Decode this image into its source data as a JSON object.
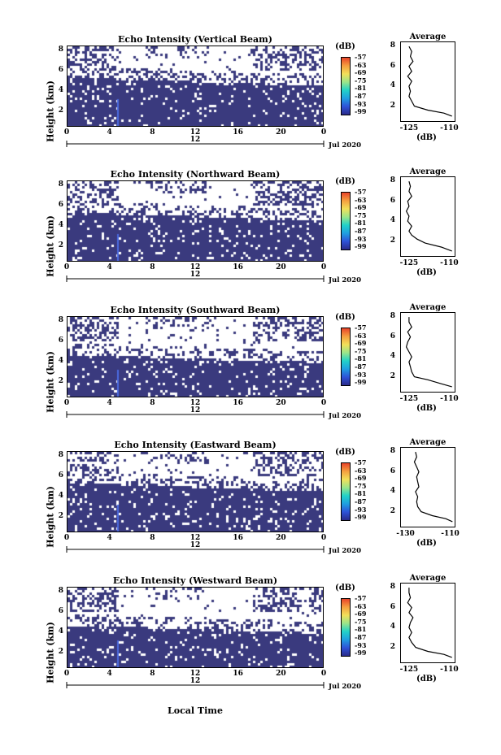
{
  "chart_data": [
    {
      "type": "heatmap",
      "title": "Echo Intensity (Vertical Beam)",
      "ylabel": "Height (km)",
      "x_ticks": [
        "0",
        "4",
        "8",
        "12",
        "16",
        "20",
        "0"
      ],
      "y_ticks": [
        "2",
        "4",
        "6",
        "8"
      ],
      "date_marker": "12",
      "date_label": "Jul 2020",
      "colorbar_label": "(dB)",
      "colorbar_ticks": [
        "-57",
        "-63",
        "-69",
        "-75",
        "-81",
        "-87",
        "-93",
        "-99"
      ],
      "avg_title": "Average",
      "avg_xlabel": "(dB)",
      "avg_x_ticks": [
        "-125",
        "-110"
      ],
      "avg_xlim": [
        -128,
        -108
      ],
      "avg_profile": {
        "height": [
          1,
          1.3,
          1.6,
          2,
          2.5,
          3,
          3.5,
          4,
          4.5,
          5,
          5.5,
          6,
          6.5,
          7,
          7.5,
          8
        ],
        "db": [
          -109,
          -112,
          -118,
          -123,
          -124,
          -125,
          -124.5,
          -125,
          -124,
          -125.5,
          -124,
          -125,
          -123.5,
          -124.5,
          -124,
          -125
        ]
      }
    },
    {
      "type": "heatmap",
      "title": "Echo Intensity (Northward Beam)",
      "ylabel": "Height (km)",
      "x_ticks": [
        "0",
        "4",
        "8",
        "12",
        "16",
        "20",
        "0"
      ],
      "y_ticks": [
        "2",
        "4",
        "6",
        "8"
      ],
      "date_marker": "12",
      "date_label": "Jul 2020",
      "colorbar_label": "(dB)",
      "colorbar_ticks": [
        "-57",
        "-63",
        "-69",
        "-75",
        "-81",
        "-87",
        "-93",
        "-99"
      ],
      "avg_title": "Average",
      "avg_xlabel": "(dB)",
      "avg_x_ticks": [
        "-125",
        "-110"
      ],
      "avg_xlim": [
        -128,
        -108
      ],
      "avg_profile": {
        "height": [
          1,
          1.4,
          1.8,
          2.2,
          2.6,
          3,
          3.5,
          4,
          4.5,
          5,
          5.5,
          6,
          6.5,
          7,
          7.5,
          8
        ],
        "db": [
          -109,
          -113,
          -119,
          -122,
          -124,
          -125,
          -124,
          -125.5,
          -125,
          -126,
          -125,
          -125.5,
          -124,
          -125,
          -124.5,
          -125
        ]
      }
    },
    {
      "type": "heatmap",
      "title": "Echo Intensity (Southward Beam)",
      "ylabel": "Height (km)",
      "x_ticks": [
        "0",
        "4",
        "8",
        "12",
        "16",
        "20",
        "0"
      ],
      "y_ticks": [
        "2",
        "4",
        "6",
        "8"
      ],
      "date_marker": "12",
      "date_label": "Jul 2020",
      "colorbar_label": "(dB)",
      "colorbar_ticks": [
        "-57",
        "-63",
        "-69",
        "-75",
        "-81",
        "-87",
        "-93",
        "-99"
      ],
      "avg_title": "Average",
      "avg_xlabel": "(dB)",
      "avg_x_ticks": [
        "-125",
        "-110"
      ],
      "avg_xlim": [
        -128,
        -108
      ],
      "avg_profile": {
        "height": [
          1,
          1.3,
          1.7,
          2,
          2.5,
          3,
          3.5,
          4,
          4.5,
          5,
          5.5,
          6,
          6.5,
          7,
          7.5,
          8
        ],
        "db": [
          -109,
          -113,
          -118,
          -123,
          -124,
          -124.5,
          -125,
          -124,
          -125,
          -126,
          -125.5,
          -124.5,
          -125.5,
          -124,
          -125,
          -125
        ]
      }
    },
    {
      "type": "heatmap",
      "title": "Echo Intensity (Eastward Beam)",
      "ylabel": "Height (km)",
      "x_ticks": [
        "0",
        "4",
        "8",
        "12",
        "16",
        "20",
        "0"
      ],
      "y_ticks": [
        "2",
        "4",
        "6",
        "8"
      ],
      "date_marker": "12",
      "date_label": "Jul 2020",
      "colorbar_label": "(dB)",
      "colorbar_ticks": [
        "-57",
        "-63",
        "-69",
        "-75",
        "-81",
        "-87",
        "-93",
        "-99"
      ],
      "avg_title": "Average",
      "avg_xlabel": "(dB)",
      "avg_x_ticks": [
        "-130",
        "-110"
      ],
      "avg_xlim": [
        -132,
        -108
      ],
      "avg_profile": {
        "height": [
          1,
          1.3,
          1.6,
          2,
          2.5,
          3,
          3.5,
          4,
          4.5,
          5,
          5.5,
          6,
          6.5,
          7,
          7.5,
          8
        ],
        "db": [
          -109,
          -112,
          -118,
          -123,
          -124.5,
          -125,
          -124.5,
          -125.5,
          -124,
          -124.5,
          -125,
          -124,
          -125,
          -126,
          -125,
          -125.5
        ]
      }
    },
    {
      "type": "heatmap",
      "title": "Echo Intensity (Westward Beam)",
      "ylabel": "Height (km)",
      "x_ticks": [
        "0",
        "4",
        "8",
        "12",
        "16",
        "20",
        "0"
      ],
      "y_ticks": [
        "2",
        "4",
        "6",
        "8"
      ],
      "date_marker": "12",
      "date_label": "Jul 2020",
      "colorbar_label": "(dB)",
      "colorbar_ticks": [
        "-57",
        "-63",
        "-69",
        "-75",
        "-81",
        "-87",
        "-93",
        "-99"
      ],
      "avg_title": "Average",
      "avg_xlabel": "(dB)",
      "avg_x_ticks": [
        "-125",
        "-110"
      ],
      "avg_xlim": [
        -128,
        -108
      ],
      "avg_profile": {
        "height": [
          1,
          1.3,
          1.6,
          2,
          2.5,
          3,
          3.5,
          4,
          4.5,
          5,
          5.5,
          6,
          6.5,
          7,
          7.5,
          8
        ],
        "db": [
          -109,
          -112,
          -118,
          -122.5,
          -124,
          -125,
          -124,
          -125,
          -124.5,
          -123.5,
          -125,
          -124,
          -125.5,
          -124.5,
          -125,
          -125
        ]
      }
    }
  ],
  "shared": {
    "xlabel": "Local Time",
    "colors": {
      "background_fill": "#3a3a7e",
      "colormap": [
        "#2a2a8a",
        "#2e52d8",
        "#1f9fe0",
        "#22d2c8",
        "#9be58a",
        "#f2e05a",
        "#f5a040",
        "#e8442a"
      ]
    }
  }
}
